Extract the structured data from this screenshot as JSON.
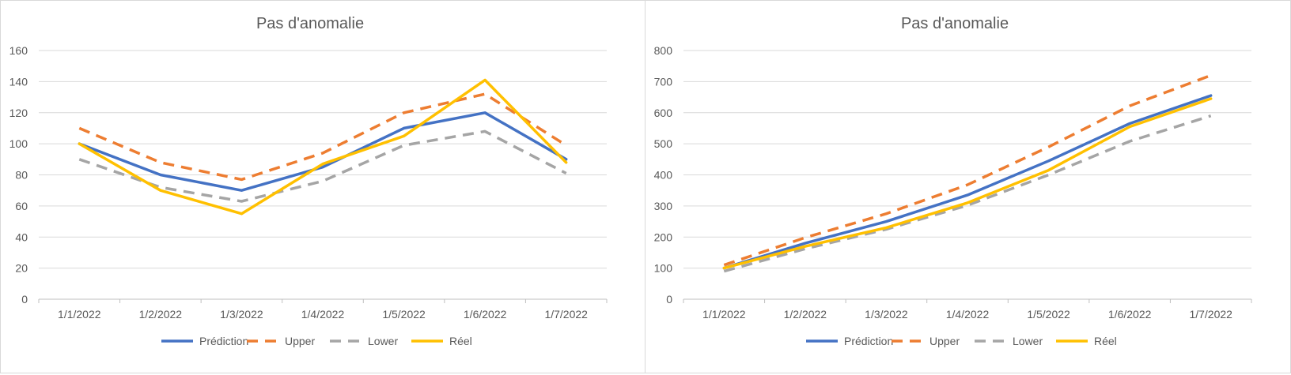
{
  "chart_data": [
    {
      "type": "line",
      "title": "Pas d'anomalie",
      "categories": [
        "1/1/2022",
        "1/2/2022",
        "1/3/2022",
        "1/4/2022",
        "1/5/2022",
        "1/6/2022",
        "1/7/2022"
      ],
      "ylim": [
        0,
        160
      ],
      "yticks": [
        0,
        20,
        40,
        60,
        80,
        100,
        120,
        140,
        160
      ],
      "grid": true,
      "legend_position": "bottom",
      "series": [
        {
          "name": "Prédiction",
          "color": "#4472C4",
          "dash": "solid",
          "values": [
            100,
            80,
            70,
            85,
            110,
            120,
            90
          ]
        },
        {
          "name": "Upper",
          "color": "#ED7D31",
          "dash": "dashed",
          "values": [
            110,
            88,
            77,
            94,
            120,
            132,
            99
          ]
        },
        {
          "name": "Lower",
          "color": "#A5A5A5",
          "dash": "dashed",
          "values": [
            90,
            72,
            63,
            76,
            99,
            108,
            81
          ]
        },
        {
          "name": "Réel",
          "color": "#FFC000",
          "dash": "solid",
          "values": [
            100,
            70,
            55,
            87,
            105,
            141,
            88
          ]
        }
      ]
    },
    {
      "type": "line",
      "title": "Pas d'anomalie",
      "categories": [
        "1/1/2022",
        "1/2/2022",
        "1/3/2022",
        "1/4/2022",
        "1/5/2022",
        "1/6/2022",
        "1/7/2022"
      ],
      "ylim": [
        0,
        800
      ],
      "yticks": [
        0,
        100,
        200,
        300,
        400,
        500,
        600,
        700,
        800
      ],
      "grid": true,
      "legend_position": "bottom",
      "series": [
        {
          "name": "Prédiction",
          "color": "#4472C4",
          "dash": "solid",
          "values": [
            100,
            180,
            250,
            335,
            445,
            565,
            655
          ]
        },
        {
          "name": "Upper",
          "color": "#ED7D31",
          "dash": "dashed",
          "values": [
            110,
            198,
            275,
            368,
            490,
            622,
            720
          ]
        },
        {
          "name": "Lower",
          "color": "#A5A5A5",
          "dash": "dashed",
          "values": [
            90,
            162,
            225,
            302,
            400,
            508,
            590
          ]
        },
        {
          "name": "Réel",
          "color": "#FFC000",
          "dash": "solid",
          "values": [
            100,
            170,
            230,
            310,
            415,
            555,
            645
          ]
        }
      ]
    }
  ]
}
